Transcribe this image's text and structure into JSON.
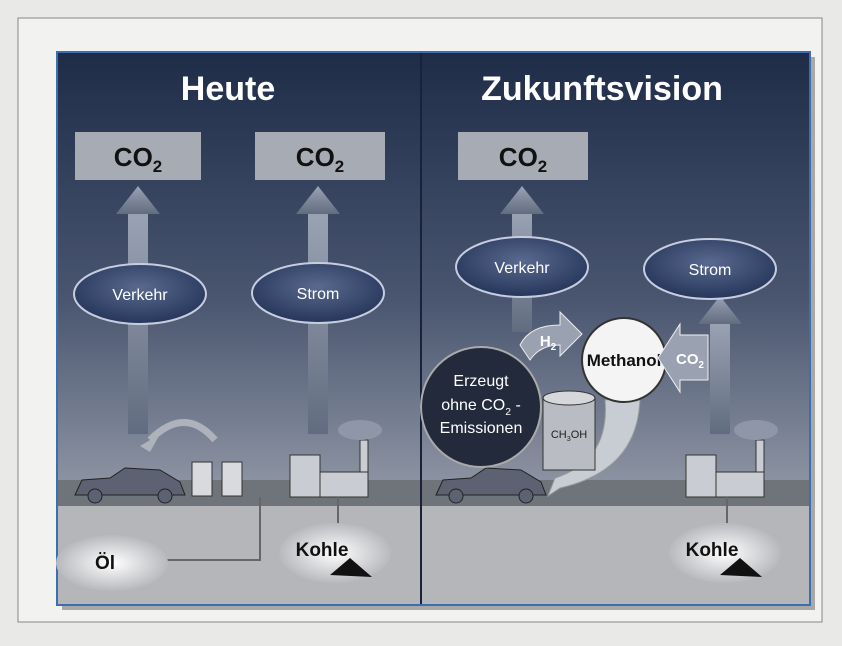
{
  "left": {
    "title": "Heute",
    "co2_boxes": [
      {
        "text": "CO",
        "sub": "2"
      },
      {
        "text": "CO",
        "sub": "2"
      }
    ],
    "consumers": [
      "Verkehr",
      "Strom"
    ],
    "sources": [
      "Öl",
      "Kohle"
    ]
  },
  "right": {
    "title": "Zukunftsvision",
    "co2_box": {
      "text": "CO",
      "sub": "2"
    },
    "consumers": [
      "Verkehr",
      "Strom"
    ],
    "methanol": "Methanol",
    "h2": {
      "text": "H",
      "sub": "2"
    },
    "co2_input": {
      "text": "CO",
      "sub": "2"
    },
    "producer": {
      "line1": "Erzeugt",
      "line2": "ohne CO",
      "line2_sub": "2",
      "line2_tail": " -",
      "line3": "Emissionen"
    },
    "barrel": {
      "a": "CH",
      "sub": "3",
      "b": "OH"
    },
    "source": "Kohle"
  }
}
